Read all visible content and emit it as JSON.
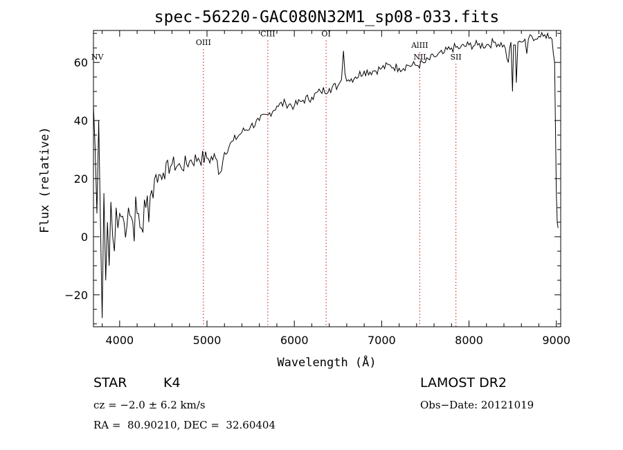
{
  "chart_data": {
    "type": "line",
    "title": "spec-56220-GAC080N32M1_sp08-033.fits",
    "xlabel": "Wavelength (Å)",
    "ylabel": "Flux (relative)",
    "xlim": [
      3700,
      9050
    ],
    "ylim": [
      -31,
      71
    ],
    "xticks": [
      4000,
      5000,
      6000,
      7000,
      8000,
      9000
    ],
    "yticks": [
      -20,
      0,
      20,
      40,
      60
    ],
    "grid": false,
    "series": [
      {
        "color": "#000000",
        "x": [
          3700,
          3720,
          3740,
          3760,
          3780,
          3800,
          3820,
          3840,
          3860,
          3880,
          3900,
          3920,
          3940,
          3960,
          3980,
          4000,
          4050,
          4100,
          4150,
          4200,
          4250,
          4300,
          4350,
          4400,
          4500,
          4600,
          4700,
          4800,
          4900,
          5000,
          5100,
          5150,
          5200,
          5300,
          5400,
          5500,
          5600,
          5700,
          5800,
          5900,
          6000,
          6100,
          6200,
          6300,
          6400,
          6500,
          6540,
          6563,
          6580,
          6620,
          6700,
          6800,
          6900,
          7000,
          7100,
          7200,
          7300,
          7400,
          7500,
          7600,
          7700,
          7800,
          7900,
          8000,
          8100,
          8200,
          8300,
          8400,
          8450,
          8480,
          8498,
          8510,
          8530,
          8542,
          8560,
          8600,
          8640,
          8662,
          8680,
          8720,
          8760,
          8800,
          8850,
          8900,
          8950,
          8980,
          9000,
          9010,
          9020
        ],
        "y": [
          45,
          30,
          8,
          40,
          5,
          -28,
          15,
          -15,
          5,
          -10,
          12,
          0,
          -5,
          10,
          3,
          8,
          5,
          10,
          5,
          8,
          3,
          10,
          14,
          20,
          22,
          25,
          24,
          26,
          27,
          27,
          27,
          22,
          29,
          33,
          36,
          38,
          40,
          42,
          45,
          46,
          45,
          47,
          48,
          50,
          51,
          52,
          54,
          64,
          56,
          54,
          55,
          57,
          57,
          58,
          59,
          58,
          59,
          59,
          60,
          62,
          63,
          65,
          65,
          66,
          66,
          66,
          67,
          66,
          60,
          67,
          50,
          66,
          66,
          53,
          67,
          67,
          68,
          63,
          68,
          69,
          68,
          69,
          69,
          70,
          68,
          60,
          15,
          5,
          3
        ]
      }
    ],
    "annotations": [
      {
        "label": "NV",
        "x": 3745,
        "y": 61,
        "line": false
      },
      {
        "label": "OIII",
        "x": 4959,
        "y": 66,
        "line": true
      },
      {
        "label": "CIII",
        "x": 5696,
        "y": 69,
        "line": true
      },
      {
        "label": "OI",
        "x": 6364,
        "y": 69,
        "line": true
      },
      {
        "label": "AlIII",
        "x": 7436,
        "y": 65,
        "line": true
      },
      {
        "label": "NII",
        "x": 7436,
        "y": 61,
        "line": false
      },
      {
        "label": "SII",
        "x": 7850,
        "y": 61,
        "line": true
      }
    ]
  },
  "info": {
    "class_label": "STAR",
    "subclass": "K4",
    "survey": "LAMOST DR2",
    "cz": "cz = −2.0 ± 6.2 km/s",
    "obs_date": "Obs−Date: 20121019",
    "coords": "RA =  80.90210, DEC =  32.60404"
  }
}
